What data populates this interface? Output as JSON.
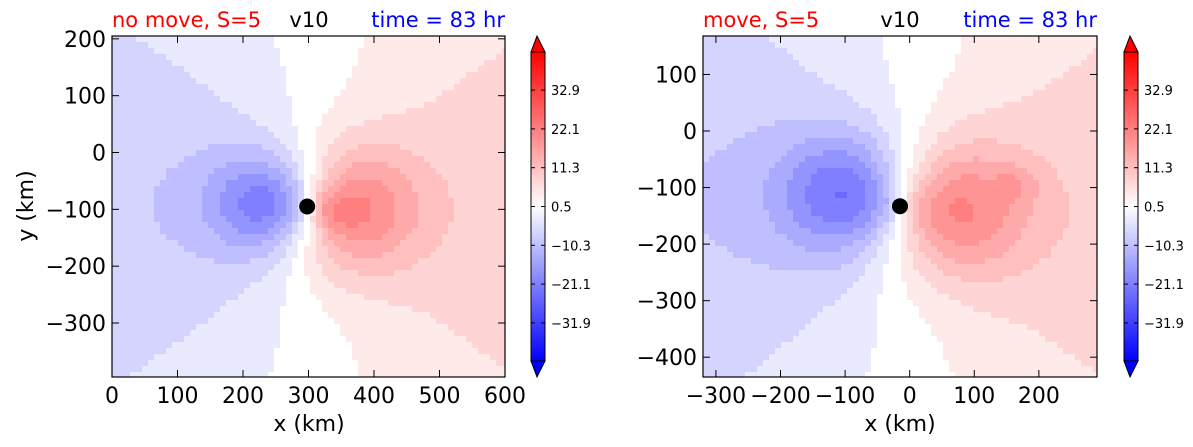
{
  "chart_data": [
    {
      "type": "heatmap",
      "variable": "v10",
      "title_left": "no move, S=5",
      "title_center": "v10",
      "title_right": "time = 83 hr",
      "xlabel": "x (km)",
      "ylabel": "y (km)",
      "xlim": [
        0,
        600
      ],
      "ylim": [
        -395,
        205
      ],
      "xticks": [
        0,
        100,
        200,
        300,
        400,
        500,
        600
      ],
      "xtick_labels": [
        "0",
        "100",
        "200",
        "300",
        "400",
        "500",
        "600"
      ],
      "yticks": [
        -300,
        -200,
        -100,
        0,
        100,
        200
      ],
      "ytick_labels": [
        "−300",
        "−200",
        "−100",
        "0",
        "100",
        "200"
      ],
      "center": {
        "x": 298,
        "y": -95
      },
      "neg_lobe": {
        "x": 250,
        "y": -90
      },
      "pos_lobe": {
        "x": 345,
        "y": -100
      },
      "pos_spot": {
        "x": 340,
        "y": -105
      },
      "peak": 20,
      "neg_r": 130,
      "pos_r": 160
    },
    {
      "type": "heatmap",
      "variable": "v10",
      "title_left": "move, S=5",
      "title_center": "v10",
      "title_right": "time = 83 hr",
      "xlabel": "x (km)",
      "ylabel": "",
      "xlim": [
        -320,
        290
      ],
      "ylim": [
        -435,
        168
      ],
      "xticks": [
        -300,
        -200,
        -100,
        0,
        100,
        200
      ],
      "xtick_labels": [
        "−300",
        "−200",
        "−100",
        "0",
        "100",
        "200"
      ],
      "yticks": [
        -400,
        -300,
        -200,
        -100,
        0,
        100
      ],
      "ytick_labels": [
        "−400",
        "−300",
        "−200",
        "−100",
        "0",
        "100"
      ],
      "center": {
        "x": -15,
        "y": -133
      },
      "neg_lobe": {
        "x": -90,
        "y": -110
      },
      "pos_lobe": {
        "x": 60,
        "y": -140
      },
      "pos_spot": {
        "x": 165,
        "y": -95
      },
      "peak": 17,
      "neg_r": 150,
      "pos_r": 170
    }
  ],
  "colorbar": {
    "vmin": -42.5,
    "vmax": 43.5,
    "tick_values": [
      32.9,
      22.1,
      11.3,
      0.5,
      -10.3,
      -21.1,
      -31.9
    ],
    "tick_labels": [
      "32.9",
      "22.1",
      "11.3",
      "0.5",
      "−10.3",
      "−21.1",
      "−31.9"
    ],
    "extend": "both",
    "cmap": "bwr",
    "color_min": "#0000ff",
    "color_mid": "#ffffff",
    "color_max": "#ff0000"
  }
}
